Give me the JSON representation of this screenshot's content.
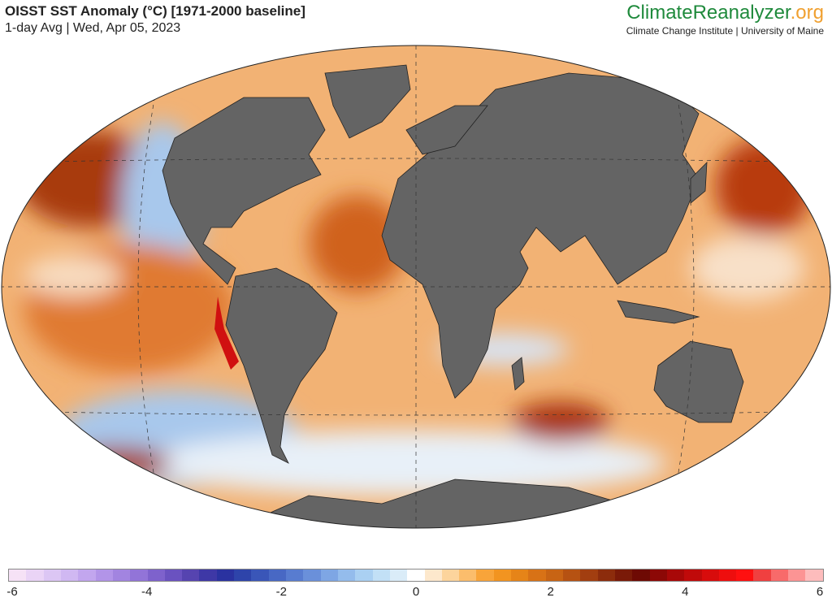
{
  "header": {
    "title": "OISST SST Anomaly (°C) [1971-2000 baseline]",
    "subtitle": "1-day Avg | Wed, Apr 05, 2023"
  },
  "brand": {
    "name_main": "ClimateReanalyzer",
    "name_suffix": ".org",
    "subtitle": "Climate Change Institute | University of Maine"
  },
  "colorbar": {
    "min": -6,
    "max": 6,
    "ticks": [
      "-6",
      "-4",
      "-2",
      "0",
      "2",
      "4",
      "6"
    ],
    "colors": [
      "#f6e2f6",
      "#ead4f6",
      "#dcc6f4",
      "#d0b8f2",
      "#c2a6ee",
      "#b294e8",
      "#a284e0",
      "#9274d8",
      "#7e62cc",
      "#6a52c0",
      "#5644b0",
      "#3e38a6",
      "#2a32a0",
      "#2e44aa",
      "#3a56b8",
      "#4868c4",
      "#587cd0",
      "#6a90da",
      "#7ea6e4",
      "#94bcec",
      "#aad0f2",
      "#c2e0f6",
      "#daecf8",
      "#ffffff",
      "#fde8cc",
      "#fcd49c",
      "#fbbd6c",
      "#f8a43a",
      "#f29420",
      "#e68418",
      "#d87216",
      "#c86414",
      "#b65212",
      "#a23e10",
      "#8c2c0c",
      "#7a1a08",
      "#6e0a04",
      "#8c0806",
      "#a80808",
      "#c00a0a",
      "#d80c0c",
      "#ee0e0e",
      "#ff1010",
      "#f04040",
      "#f86a6a",
      "#fc9494",
      "#fdbcbc"
    ]
  },
  "map": {
    "land_color": "#646464",
    "ocean_anomaly_color": "#eea058",
    "cold_color": "#a8c8ec",
    "hot_color": "#a83008"
  }
}
